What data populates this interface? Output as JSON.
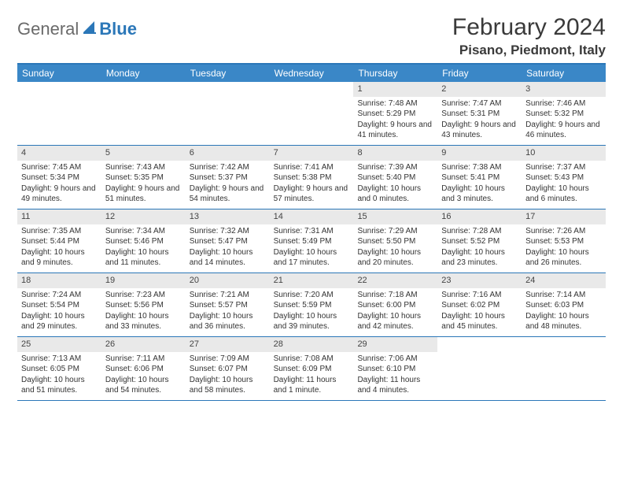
{
  "logo": {
    "general": "General",
    "blue": "Blue"
  },
  "title": "February 2024",
  "location": "Pisano, Piedmont, Italy",
  "colors": {
    "header_bg": "#3a87c7",
    "rule": "#2b77b8",
    "daynum_bg": "#e9e9e9",
    "text": "#333333",
    "logo_gray": "#6a6a6a",
    "logo_blue": "#2b77b8"
  },
  "day_names": [
    "Sunday",
    "Monday",
    "Tuesday",
    "Wednesday",
    "Thursday",
    "Friday",
    "Saturday"
  ],
  "weeks": [
    [
      null,
      null,
      null,
      null,
      {
        "n": "1",
        "sr": "7:48 AM",
        "ss": "5:29 PM",
        "dl": "9 hours and 41 minutes."
      },
      {
        "n": "2",
        "sr": "7:47 AM",
        "ss": "5:31 PM",
        "dl": "9 hours and 43 minutes."
      },
      {
        "n": "3",
        "sr": "7:46 AM",
        "ss": "5:32 PM",
        "dl": "9 hours and 46 minutes."
      }
    ],
    [
      {
        "n": "4",
        "sr": "7:45 AM",
        "ss": "5:34 PM",
        "dl": "9 hours and 49 minutes."
      },
      {
        "n": "5",
        "sr": "7:43 AM",
        "ss": "5:35 PM",
        "dl": "9 hours and 51 minutes."
      },
      {
        "n": "6",
        "sr": "7:42 AM",
        "ss": "5:37 PM",
        "dl": "9 hours and 54 minutes."
      },
      {
        "n": "7",
        "sr": "7:41 AM",
        "ss": "5:38 PM",
        "dl": "9 hours and 57 minutes."
      },
      {
        "n": "8",
        "sr": "7:39 AM",
        "ss": "5:40 PM",
        "dl": "10 hours and 0 minutes."
      },
      {
        "n": "9",
        "sr": "7:38 AM",
        "ss": "5:41 PM",
        "dl": "10 hours and 3 minutes."
      },
      {
        "n": "10",
        "sr": "7:37 AM",
        "ss": "5:43 PM",
        "dl": "10 hours and 6 minutes."
      }
    ],
    [
      {
        "n": "11",
        "sr": "7:35 AM",
        "ss": "5:44 PM",
        "dl": "10 hours and 9 minutes."
      },
      {
        "n": "12",
        "sr": "7:34 AM",
        "ss": "5:46 PM",
        "dl": "10 hours and 11 minutes."
      },
      {
        "n": "13",
        "sr": "7:32 AM",
        "ss": "5:47 PM",
        "dl": "10 hours and 14 minutes."
      },
      {
        "n": "14",
        "sr": "7:31 AM",
        "ss": "5:49 PM",
        "dl": "10 hours and 17 minutes."
      },
      {
        "n": "15",
        "sr": "7:29 AM",
        "ss": "5:50 PM",
        "dl": "10 hours and 20 minutes."
      },
      {
        "n": "16",
        "sr": "7:28 AM",
        "ss": "5:52 PM",
        "dl": "10 hours and 23 minutes."
      },
      {
        "n": "17",
        "sr": "7:26 AM",
        "ss": "5:53 PM",
        "dl": "10 hours and 26 minutes."
      }
    ],
    [
      {
        "n": "18",
        "sr": "7:24 AM",
        "ss": "5:54 PM",
        "dl": "10 hours and 29 minutes."
      },
      {
        "n": "19",
        "sr": "7:23 AM",
        "ss": "5:56 PM",
        "dl": "10 hours and 33 minutes."
      },
      {
        "n": "20",
        "sr": "7:21 AM",
        "ss": "5:57 PM",
        "dl": "10 hours and 36 minutes."
      },
      {
        "n": "21",
        "sr": "7:20 AM",
        "ss": "5:59 PM",
        "dl": "10 hours and 39 minutes."
      },
      {
        "n": "22",
        "sr": "7:18 AM",
        "ss": "6:00 PM",
        "dl": "10 hours and 42 minutes."
      },
      {
        "n": "23",
        "sr": "7:16 AM",
        "ss": "6:02 PM",
        "dl": "10 hours and 45 minutes."
      },
      {
        "n": "24",
        "sr": "7:14 AM",
        "ss": "6:03 PM",
        "dl": "10 hours and 48 minutes."
      }
    ],
    [
      {
        "n": "25",
        "sr": "7:13 AM",
        "ss": "6:05 PM",
        "dl": "10 hours and 51 minutes."
      },
      {
        "n": "26",
        "sr": "7:11 AM",
        "ss": "6:06 PM",
        "dl": "10 hours and 54 minutes."
      },
      {
        "n": "27",
        "sr": "7:09 AM",
        "ss": "6:07 PM",
        "dl": "10 hours and 58 minutes."
      },
      {
        "n": "28",
        "sr": "7:08 AM",
        "ss": "6:09 PM",
        "dl": "11 hours and 1 minute."
      },
      {
        "n": "29",
        "sr": "7:06 AM",
        "ss": "6:10 PM",
        "dl": "11 hours and 4 minutes."
      },
      null,
      null
    ]
  ],
  "labels": {
    "sunrise": "Sunrise: ",
    "sunset": "Sunset: ",
    "daylight": "Daylight: "
  }
}
